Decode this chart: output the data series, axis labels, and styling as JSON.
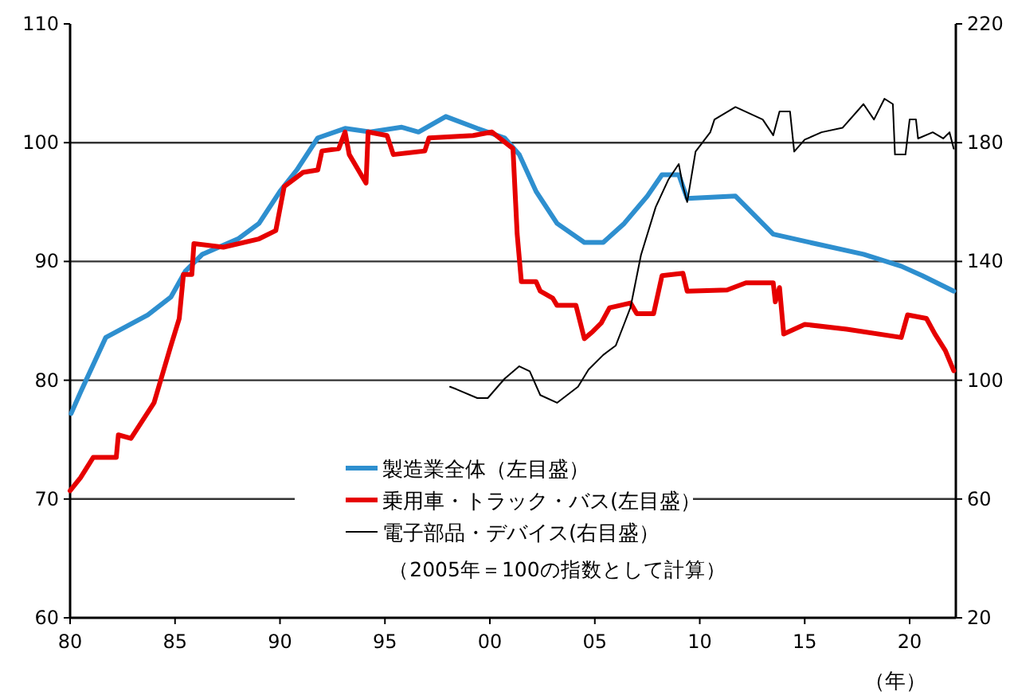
{
  "chart_data": {
    "type": "line",
    "xlabel": "（年）",
    "annotations": [
      "（2005年＝100の指数として計算）"
    ],
    "xlim": [
      1980,
      2022.2
    ],
    "xticks": [
      {
        "value": 1980,
        "label": "80"
      },
      {
        "value": 1985,
        "label": "85"
      },
      {
        "value": 1990,
        "label": "90"
      },
      {
        "value": 1995,
        "label": "95"
      },
      {
        "value": 2000,
        "label": "00"
      },
      {
        "value": 2005,
        "label": "05"
      },
      {
        "value": 2010,
        "label": "10"
      },
      {
        "value": 2015,
        "label": "15"
      },
      {
        "value": 2020,
        "label": "20"
      }
    ],
    "ylim": [
      60,
      110
    ],
    "yticks": [
      60,
      70,
      80,
      90,
      100,
      110
    ],
    "y2lim": [
      20,
      220
    ],
    "y2ticks": [
      20,
      60,
      100,
      140,
      180,
      220
    ],
    "grid": "y",
    "legend": "bottom",
    "series": [
      {
        "name": "製造業全体（左目盛）",
        "color": "#2e8fcf",
        "x": [
          1980.05,
          1980.5,
          1981.7,
          1983.7,
          1984.8,
          1985.5,
          1986.3,
          1988,
          1989,
          1990,
          1990.8,
          1991.8,
          1993.1,
          1994.3,
          1995.8,
          1996.6,
          1997.9,
          1999.4,
          2000.7,
          2001.4,
          2002.2,
          2003.2,
          2004.5,
          2005.4,
          2006.4,
          2007.5,
          2008.2,
          2009,
          2009.4,
          2011.7,
          2013.5,
          2015.5,
          2017.8,
          2019.6,
          2020.6,
          2022.1
        ],
        "values": [
          77.2,
          79,
          83.6,
          85.5,
          87,
          89.2,
          90.6,
          91.9,
          93.2,
          95.9,
          97.7,
          100.4,
          101.2,
          100.9,
          101.3,
          100.9,
          102.2,
          101.2,
          100.4,
          99,
          95.9,
          93.2,
          91.6,
          91.6,
          93.2,
          95.5,
          97.3,
          97.3,
          95.3,
          95.5,
          92.3,
          91.5,
          90.6,
          89.6,
          88.8,
          87.5
        ]
      },
      {
        "name": "乗用車・トラック・バス(左目盛）",
        "color": "#e60000",
        "x": [
          1980,
          1980.5,
          1981.1,
          1982.2,
          1982.3,
          1982.9,
          1984,
          1984.8,
          1985.2,
          1985.4,
          1985.8,
          1985.9,
          1987.3,
          1989,
          1989.8,
          1990.2,
          1991.1,
          1991.8,
          1992,
          1992.8,
          1993.1,
          1993.3,
          1994.1,
          1994.2,
          1995.1,
          1995.4,
          1996.9,
          1997.1,
          1999.2,
          2000.1,
          2001.1,
          2001.3,
          2001.5,
          2002.2,
          2002.4,
          2003,
          2003.2,
          2004.1,
          2004.5,
          2004.9,
          2005.3,
          2005.7,
          2006.7,
          2007,
          2007.8,
          2008.2,
          2009.2,
          2009.4,
          2011.3,
          2012.2,
          2013.5,
          2013.6,
          2013.8,
          2014,
          2015,
          2017,
          2019.6,
          2019.9,
          2020.8,
          2021.2,
          2021.7,
          2022.1
        ],
        "values": [
          70.7,
          71.8,
          73.5,
          73.5,
          75.4,
          75.1,
          78.1,
          82.9,
          85.2,
          88.9,
          88.9,
          91.5,
          91.2,
          91.9,
          92.6,
          96.3,
          97.5,
          97.7,
          99.3,
          99.5,
          100.9,
          99,
          96.6,
          100.9,
          100.6,
          99,
          99.3,
          100.4,
          100.6,
          100.9,
          99.5,
          92.3,
          88.3,
          88.3,
          87.5,
          86.9,
          86.3,
          86.3,
          83.5,
          84.1,
          84.8,
          86.1,
          86.5,
          85.6,
          85.6,
          88.8,
          89,
          87.5,
          87.6,
          88.2,
          88.2,
          86.6,
          87.8,
          83.9,
          84.7,
          84.3,
          83.6,
          85.5,
          85.2,
          83.9,
          82.5,
          80.8
        ]
      },
      {
        "name": "電子部品・デバイス(右目盛）",
        "color": "#000000",
        "axis": "y2",
        "x": [
          1998.1,
          1998.4,
          1999.4,
          1999.9,
          2000.7,
          2001.4,
          2001.9,
          2002.4,
          2003.2,
          2004.2,
          2004.7,
          2005.4,
          2006,
          2006.4,
          2006.7,
          2007.2,
          2007.9,
          2008.5,
          2009,
          2009.2,
          2009.4,
          2009.8,
          2010.5,
          2010.7,
          2011.7,
          2013,
          2013.5,
          2013.8,
          2014.3,
          2014.5,
          2015,
          2015.8,
          2016.8,
          2017.8,
          2018.3,
          2018.8,
          2019.2,
          2019.3,
          2019.8,
          2020,
          2020.3,
          2020.4,
          2021.1,
          2021.6,
          2021.9,
          2022.1
        ],
        "values": [
          97.8,
          97,
          94,
          94,
          100.5,
          104.7,
          103,
          95,
          92.4,
          97.8,
          103.6,
          108.5,
          111.7,
          119,
          124.5,
          142.2,
          158.3,
          167.5,
          172.8,
          165.3,
          160,
          177,
          183.5,
          187.8,
          192,
          187.8,
          182.5,
          190.5,
          190.5,
          177,
          181,
          183.5,
          185,
          193,
          187.8,
          194.8,
          193,
          176,
          176,
          187.8,
          187.8,
          181.4,
          183.5,
          181.4,
          183.5,
          178
        ]
      }
    ]
  }
}
